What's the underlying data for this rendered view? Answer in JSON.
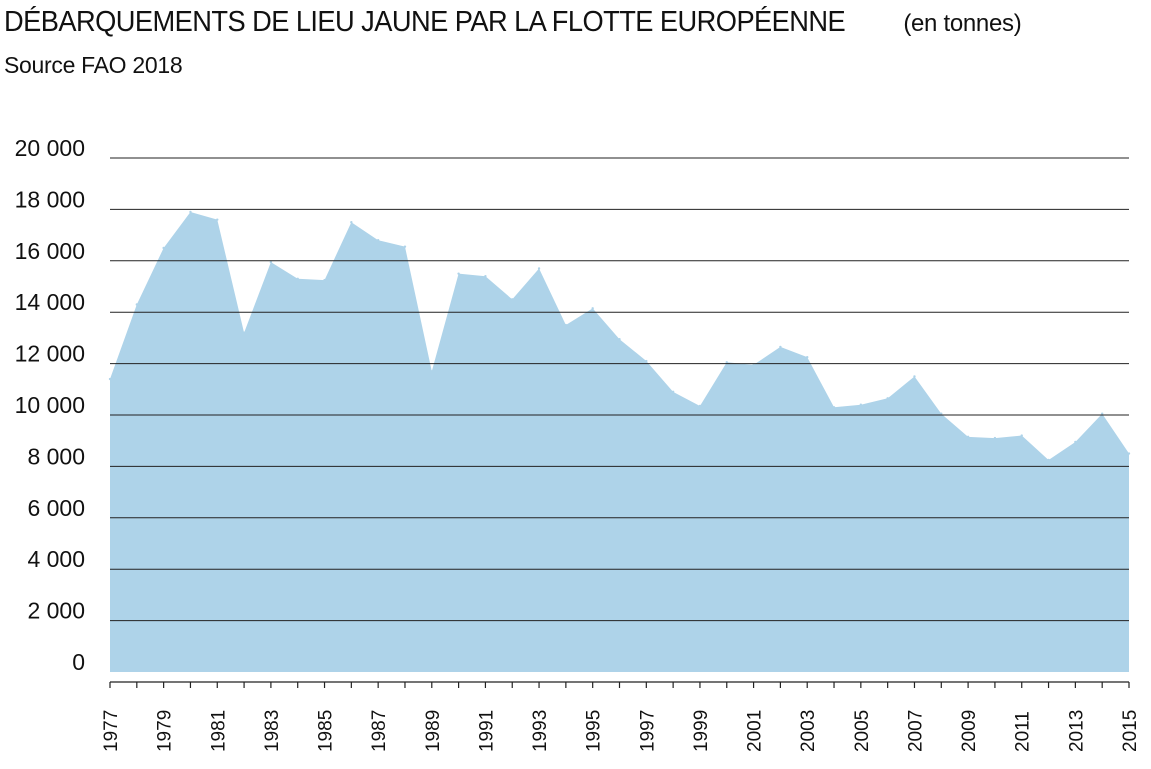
{
  "header": {
    "title": "DÉBARQUEMENTS DE LIEU JAUNE PAR LA FLOTTE EUROPÉENNE",
    "unit": "(en tonnes)",
    "source": "Source FAO 2018"
  },
  "colors": {
    "area_fill": "#aed3e9",
    "grid": "#222222",
    "text": "#111111"
  },
  "chart_data": {
    "type": "area",
    "title": "DÉBARQUEMENTS DE LIEU JAUNE PAR LA FLOTTE EUROPÉENNE (en tonnes)",
    "xlabel": "",
    "ylabel": "",
    "ylim": [
      0,
      20000
    ],
    "yticks": [
      0,
      2000,
      4000,
      6000,
      8000,
      10000,
      12000,
      14000,
      16000,
      18000,
      20000
    ],
    "ytick_labels": [
      "0",
      "2 000",
      "4 000",
      "6 000",
      "8 000",
      "10 000",
      "12 000",
      "14 000",
      "16 000",
      "18 000",
      "20 000"
    ],
    "xtick_labels": [
      "1977",
      "1979",
      "1981",
      "1983",
      "1985",
      "1987",
      "1989",
      "1991",
      "1993",
      "1995",
      "1997",
      "1999",
      "2001",
      "2003",
      "2005",
      "2007",
      "2009",
      "2011",
      "2013",
      "2015"
    ],
    "grid": "horizontal",
    "legend": "none",
    "series": [
      {
        "x": [
          1977,
          1978,
          1979,
          1980,
          1981,
          1982,
          1983,
          1984,
          1985,
          1986,
          1987,
          1988,
          1989,
          1990,
          1991,
          1992,
          1993,
          1994,
          1995,
          1996,
          1997,
          1998,
          1999,
          2000,
          2001,
          2002,
          2003,
          2004,
          2005,
          2006,
          2007,
          2008,
          2009,
          2010,
          2011,
          2012,
          2013,
          2014,
          2015
        ],
        "values": [
          11400,
          14300,
          16500,
          17900,
          17600,
          13200,
          15950,
          15300,
          15250,
          17500,
          16800,
          16550,
          11700,
          15500,
          15400,
          14500,
          15700,
          13500,
          14150,
          12950,
          12100,
          10900,
          10350,
          12050,
          11950,
          12650,
          12250,
          10300,
          10400,
          10650,
          11500,
          10050,
          9150,
          9100,
          9200,
          8250,
          8950,
          10050,
          8500
        ]
      }
    ]
  }
}
